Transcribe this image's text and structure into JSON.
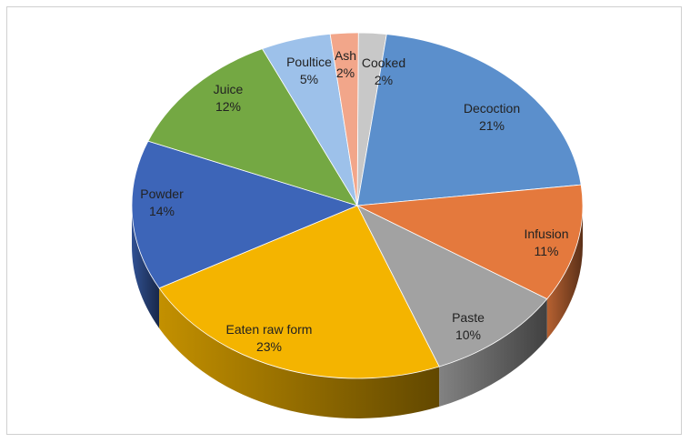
{
  "chart_data": {
    "type": "pie",
    "style": "3d",
    "title": "",
    "slices": [
      {
        "label": "Cooked",
        "value": 2,
        "pct_label": "2%",
        "color": "#c8c8c8"
      },
      {
        "label": "Decoction",
        "value": 21,
        "pct_label": "21%",
        "color": "#5b8fcc"
      },
      {
        "label": "Infusion",
        "value": 11,
        "pct_label": "11%",
        "color": "#e4793d"
      },
      {
        "label": "Paste",
        "value": 10,
        "pct_label": "10%",
        "color": "#a2a2a2"
      },
      {
        "label": "Eaten raw form",
        "value": 23,
        "pct_label": "23%",
        "color": "#f4b400"
      },
      {
        "label": "Powder",
        "value": 14,
        "pct_label": "14%",
        "color": "#3d65b8"
      },
      {
        "label": "Juice",
        "value": 12,
        "pct_label": "12%",
        "color": "#74a843"
      },
      {
        "label": "Poultice",
        "value": 5,
        "pct_label": "5%",
        "color": "#9dc1ea"
      },
      {
        "label": "Ash",
        "value": 2,
        "pct_label": "2%",
        "color": "#f2a68a"
      }
    ],
    "legend": "none"
  }
}
